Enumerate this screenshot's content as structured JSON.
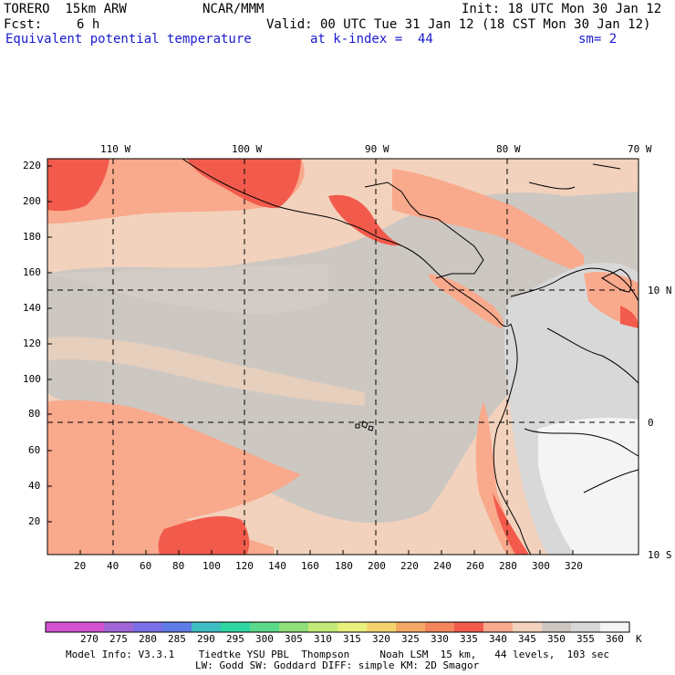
{
  "header": {
    "model": "TORERO  15km ARW",
    "org": "NCAR/MMM",
    "init": "Init: 18 UTC Mon 30 Jan 12",
    "fcst_label": "Fcst:",
    "fcst_value": "6 h",
    "valid": "Valid: 00 UTC Tue 31 Jan 12 (18 CST Mon 30 Jan 12)",
    "field": "Equivalent potential temperature",
    "level": "at k-index =  44",
    "smooth": "sm= 2"
  },
  "map": {
    "lon_labels": [
      "110 W",
      "100 W",
      "90 W",
      "80 W",
      "70 W"
    ],
    "lat_labels": [
      "10 N",
      "0",
      "10 S"
    ],
    "y_ticks": [
      "220",
      "200",
      "180",
      "160",
      "140",
      "120",
      "100",
      "80",
      "60",
      "40",
      "20"
    ],
    "x_ticks": [
      "20",
      "40",
      "60",
      "80",
      "100",
      "120",
      "140",
      "160",
      "180",
      "200",
      "220",
      "240",
      "260",
      "280",
      "300",
      "320"
    ],
    "colors": {
      "ocean_base": "#f2d2bc",
      "grey_band": "#cdc7c2",
      "salmon": "#f9a98c",
      "red": "#f25b4c",
      "light_grey": "#d8d8d8",
      "white": "#f4f4f4"
    }
  },
  "colorbar": {
    "unit": "K",
    "labels": [
      "270",
      "275",
      "280",
      "285",
      "290",
      "295",
      "300",
      "305",
      "310",
      "315",
      "320",
      "325",
      "330",
      "335",
      "340",
      "345",
      "350",
      "355",
      "360"
    ],
    "colors": [
      "#d452cf",
      "#a066d8",
      "#7b6ee8",
      "#5f7be8",
      "#3ebfc4",
      "#2fd6a3",
      "#5ad98a",
      "#8fe07a",
      "#c3ea79",
      "#e9f07c",
      "#f5d46e",
      "#f3a864",
      "#f4855c",
      "#f25b4c",
      "#f9a98c",
      "#f2d2bc",
      "#cdc7c2",
      "#d8d8d8",
      "#f4f4f4"
    ]
  },
  "footer": {
    "line1": "Model Info: V3.3.1    Tiedtke YSU PBL  Thompson     Noah LSM  15 km,   44 levels,  103 sec",
    "line2": "LW: Godd SW: Goddard DIFF: simple KM: 2D Smagor"
  }
}
